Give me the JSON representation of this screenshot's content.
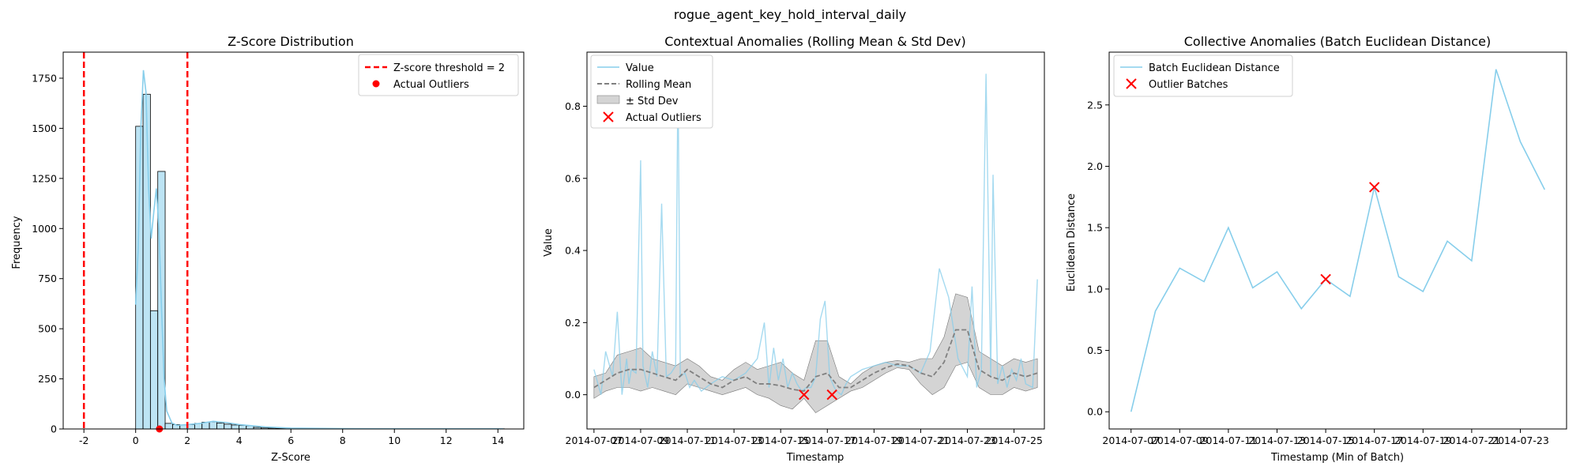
{
  "suptitle": "rogue_agent_key_hold_interval_daily",
  "colors": {
    "series": "#87CEEB",
    "outlier": "#FF0000",
    "rolling": "#808080",
    "band": "#A9A9A9",
    "threshold": "#FF0000"
  },
  "chart_data": [
    {
      "type": "histogram",
      "title": "Z-Score Distribution",
      "xlabel": "Z-Score",
      "ylabel": "Frequency",
      "xlim": [
        -2.8,
        15.0
      ],
      "ylim": [
        0,
        1880
      ],
      "xticks": [
        -2,
        0,
        2,
        4,
        6,
        8,
        10,
        12,
        14
      ],
      "yticks": [
        0,
        250,
        500,
        750,
        1000,
        1250,
        1500,
        1750
      ],
      "bin_width": 0.285,
      "bins_start": 0.0,
      "counts": [
        1510,
        1670,
        590,
        1285,
        28,
        22,
        20,
        22,
        28,
        34,
        36,
        30,
        24,
        20,
        18,
        16,
        8,
        5,
        4,
        3,
        3,
        2,
        2,
        2,
        2,
        2,
        2,
        2,
        2,
        2,
        2,
        2,
        2,
        1,
        1,
        1,
        1,
        1,
        1,
        1,
        1,
        1,
        1,
        1,
        1,
        1,
        1,
        1,
        1,
        1
      ],
      "kde": {
        "x": [
          0.0,
          0.1,
          0.2,
          0.3,
          0.4,
          0.5,
          0.6,
          0.7,
          0.8,
          0.9,
          1.0,
          1.1,
          1.2,
          1.4,
          1.6,
          2.0,
          2.5,
          3.0,
          3.5,
          4.0,
          4.5,
          5.0,
          6.0,
          8.0,
          10.0,
          12.0,
          14.2
        ],
        "y": [
          620,
          900,
          1500,
          1790,
          1680,
          1200,
          950,
          1080,
          1200,
          1000,
          600,
          250,
          90,
          30,
          18,
          22,
          28,
          38,
          32,
          22,
          16,
          10,
          4,
          2,
          1,
          1,
          1
        ]
      },
      "thresholds": [
        -2,
        2
      ],
      "outliers": [
        {
          "x": 0.92,
          "y": 0
        }
      ],
      "legend": [
        {
          "label": "Z-score threshold = 2",
          "kind": "dash"
        },
        {
          "label": "Actual Outliers",
          "kind": "dot"
        }
      ],
      "legend_loc": "upper right"
    },
    {
      "type": "line",
      "title": "Contextual Anomalies (Rolling Mean & Std Dev)",
      "xlabel": "Timestamp",
      "ylabel": "Value",
      "xlim": [
        -0.3,
        19.3
      ],
      "ylim": [
        -0.095,
        0.95
      ],
      "xtick_positions": [
        0,
        2,
        4,
        6,
        8,
        10,
        12,
        14,
        16,
        18
      ],
      "xtick_labels": [
        "2014-07-07",
        "2014-07-09",
        "2014-07-11",
        "2014-07-13",
        "2014-07-15",
        "2014-07-17",
        "2014-07-19",
        "2014-07-21",
        "2014-07-23",
        "2014-07-25"
      ],
      "yticks": [
        0.0,
        0.2,
        0.4,
        0.6,
        0.8
      ],
      "value": {
        "x": [
          0.0,
          0.3,
          0.5,
          0.8,
          1.0,
          1.2,
          1.4,
          1.5,
          1.6,
          1.8,
          2.0,
          2.1,
          2.3,
          2.5,
          2.7,
          2.9,
          3.1,
          3.3,
          3.5,
          3.6,
          3.7,
          3.9,
          4.1,
          4.3,
          4.6,
          5.0,
          5.5,
          6.0,
          6.5,
          7.0,
          7.3,
          7.5,
          7.7,
          7.9,
          8.1,
          8.3,
          8.5,
          8.7,
          8.9,
          9.1,
          9.3,
          9.5,
          9.7,
          9.9,
          10.1,
          10.3,
          10.4,
          10.6,
          10.8,
          11.0,
          11.5,
          12.0,
          12.5,
          13.0,
          13.5,
          14.0,
          14.4,
          14.8,
          15.2,
          15.6,
          16.0,
          16.2,
          16.4,
          16.6,
          16.8,
          17.0,
          17.1,
          17.3,
          17.5,
          17.7,
          17.9,
          18.1,
          18.3,
          18.5,
          18.8,
          19.0
        ],
        "y": [
          0.07,
          0.0,
          0.12,
          0.05,
          0.23,
          0.0,
          0.1,
          0.03,
          0.07,
          0.06,
          0.65,
          0.08,
          0.02,
          0.12,
          0.05,
          0.53,
          0.05,
          0.06,
          0.08,
          0.9,
          0.05,
          0.06,
          0.02,
          0.04,
          0.01,
          0.03,
          0.05,
          0.04,
          0.06,
          0.1,
          0.2,
          0.02,
          0.13,
          0.04,
          0.1,
          0.02,
          0.06,
          0.03,
          0.01,
          0.02,
          0.02,
          0.05,
          0.21,
          0.26,
          0.05,
          0.02,
          0.01,
          0.0,
          0.03,
          0.05,
          0.07,
          0.08,
          0.09,
          0.08,
          0.08,
          0.06,
          0.12,
          0.35,
          0.27,
          0.1,
          0.05,
          0.3,
          0.02,
          0.07,
          0.89,
          0.05,
          0.61,
          0.03,
          0.08,
          0.02,
          0.07,
          0.04,
          0.1,
          0.03,
          0.02,
          0.32
        ]
      },
      "rolling_mean": {
        "x": [
          0,
          0.5,
          1,
          1.5,
          2,
          2.5,
          3,
          3.5,
          4,
          4.5,
          5,
          5.5,
          6,
          6.5,
          7,
          7.5,
          8,
          8.5,
          9,
          9.5,
          10,
          10.5,
          11,
          11.5,
          12,
          12.5,
          13,
          13.5,
          14,
          14.5,
          15,
          15.5,
          16,
          16.5,
          17,
          17.5,
          18,
          18.5,
          19
        ],
        "y": [
          0.02,
          0.04,
          0.06,
          0.07,
          0.07,
          0.06,
          0.05,
          0.04,
          0.07,
          0.05,
          0.03,
          0.02,
          0.04,
          0.05,
          0.03,
          0.03,
          0.025,
          0.015,
          0.01,
          0.05,
          0.06,
          0.02,
          0.02,
          0.04,
          0.06,
          0.075,
          0.085,
          0.08,
          0.06,
          0.05,
          0.09,
          0.18,
          0.18,
          0.07,
          0.05,
          0.04,
          0.06,
          0.05,
          0.06
        ]
      },
      "std_upper": [
        0.05,
        0.06,
        0.11,
        0.12,
        0.13,
        0.1,
        0.09,
        0.08,
        0.1,
        0.08,
        0.05,
        0.04,
        0.07,
        0.09,
        0.07,
        0.08,
        0.09,
        0.06,
        0.04,
        0.15,
        0.15,
        0.05,
        0.03,
        0.06,
        0.08,
        0.09,
        0.095,
        0.09,
        0.1,
        0.1,
        0.16,
        0.28,
        0.27,
        0.12,
        0.1,
        0.08,
        0.1,
        0.09,
        0.1
      ],
      "std_lower": [
        -0.01,
        0.01,
        0.02,
        0.02,
        0.01,
        0.02,
        0.01,
        0.0,
        0.03,
        0.02,
        0.01,
        0.0,
        0.01,
        0.02,
        0.0,
        -0.01,
        -0.03,
        -0.04,
        -0.01,
        -0.05,
        -0.03,
        -0.01,
        0.01,
        0.02,
        0.04,
        0.06,
        0.075,
        0.07,
        0.03,
        0.0,
        0.02,
        0.08,
        0.09,
        0.02,
        0.0,
        0.0,
        0.02,
        0.01,
        0.02
      ],
      "outliers": [
        {
          "x": 9.0,
          "y": 0.0
        },
        {
          "x": 10.2,
          "y": 0.0
        }
      ],
      "legend": [
        {
          "label": "Value",
          "kind": "line"
        },
        {
          "label": "Rolling Mean",
          "kind": "dashline"
        },
        {
          "label": "± Std Dev",
          "kind": "patch"
        },
        {
          "label": "Actual Outliers",
          "kind": "x"
        }
      ],
      "legend_loc": "upper left"
    },
    {
      "type": "line",
      "title": "Collective Anomalies (Batch Euclidean Distance)",
      "xlabel": "Timestamp (Min of Batch)",
      "ylabel": "Euclidean Distance",
      "xlim": [
        -0.9,
        17.9
      ],
      "ylim": [
        -0.14,
        2.93
      ],
      "xtick_positions": [
        0,
        2,
        4,
        6,
        8,
        10,
        12,
        14,
        16
      ],
      "xtick_labels": [
        "2014-07-07",
        "2014-07-09",
        "2014-07-11",
        "2014-07-13",
        "2014-07-15",
        "2014-07-17",
        "2014-07-19",
        "2014-07-21",
        "2014-07-23"
      ],
      "yticks": [
        0.0,
        0.5,
        1.0,
        1.5,
        2.0,
        2.5
      ],
      "series": [
        {
          "name": "Batch Euclidean Distance",
          "x": [
            0,
            1,
            2,
            3,
            4,
            5,
            6,
            7,
            8,
            9,
            10,
            11,
            12,
            13,
            14,
            15,
            16,
            17
          ],
          "values": [
            0.0,
            0.82,
            1.17,
            1.06,
            1.5,
            1.01,
            1.14,
            0.84,
            1.08,
            0.94,
            1.83,
            1.1,
            0.98,
            1.39,
            1.23,
            2.79,
            2.2,
            1.81
          ]
        }
      ],
      "outliers": [
        {
          "x": 8,
          "y": 1.08
        },
        {
          "x": 10,
          "y": 1.83
        }
      ],
      "legend": [
        {
          "label": "Batch Euclidean Distance",
          "kind": "line"
        },
        {
          "label": "Outlier Batches",
          "kind": "x"
        }
      ],
      "legend_loc": "upper left"
    }
  ]
}
